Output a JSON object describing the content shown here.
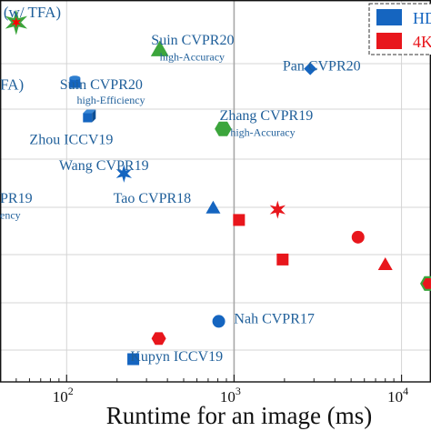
{
  "chart_data": {
    "type": "scatter",
    "xscale": "log",
    "xlim": [
      40,
      15000
    ],
    "xlabel": "Runtime for an image (ms)",
    "xticks": [
      {
        "value": 100,
        "base": "10",
        "exp": "2"
      },
      {
        "value": 1000,
        "base": "10",
        "exp": "3"
      },
      {
        "value": 10000,
        "base": "10",
        "exp": "4"
      }
    ],
    "grid": true,
    "colors": {
      "hd": "#1565c0",
      "uhd": "#e8161c",
      "label": "#1f5f9a",
      "green": "#3ca53c"
    },
    "legend": {
      "placement": "top-right",
      "entries": [
        {
          "label": "HD",
          "color": "#1565c0"
        },
        {
          "label": "4K",
          "color": "#e8161c"
        }
      ]
    },
    "labels": [
      {
        "text": "(w/ TFA)",
        "x": 42,
        "row": 0.035,
        "size": 17
      },
      {
        "text": "Suin CVPR20",
        "x": 320,
        "row": 0.115,
        "size": 16
      },
      {
        "text": "high-Accuracy",
        "x": 360,
        "row": 0.165,
        "size": 12
      },
      {
        "text": "Pan CVPR20",
        "x": 1950,
        "row": 0.19,
        "size": 16
      },
      {
        "text": "FA)",
        "x": 40,
        "row": 0.245,
        "size": 17
      },
      {
        "text": "Suin CVPR20",
        "x": 91,
        "row": 0.245,
        "size": 16
      },
      {
        "text": "high-Efficiency",
        "x": 115,
        "row": 0.29,
        "size": 12
      },
      {
        "text": "Zhang CVPR19",
        "x": 820,
        "row": 0.335,
        "size": 16
      },
      {
        "text": "high-Accuracy",
        "x": 950,
        "row": 0.385,
        "size": 12
      },
      {
        "text": "Zhou ICCV19",
        "x": 60,
        "row": 0.405,
        "size": 16
      },
      {
        "text": "Wang CVPR19",
        "x": 90,
        "row": 0.48,
        "size": 16
      },
      {
        "text": "PR19",
        "x": 40,
        "row": 0.575,
        "size": 16
      },
      {
        "text": "ency",
        "x": 40,
        "row": 0.625,
        "size": 12
      },
      {
        "text": "Tao CVPR18",
        "x": 190,
        "row": 0.575,
        "size": 16
      },
      {
        "text": "Nah CVPR17",
        "x": 1000,
        "row": 0.925,
        "size": 16
      },
      {
        "text": "Kupyn ICCV19",
        "x": 240,
        "row": 1.035,
        "size": 16
      }
    ],
    "points": [
      {
        "x": 50,
        "row": 0.065,
        "marker": "star",
        "color": "red",
        "edge": "#3ca53c"
      },
      {
        "x": 360,
        "row": 0.145,
        "marker": "triangle",
        "color": "green",
        "edge": "#3ca53c"
      },
      {
        "x": 2850,
        "row": 0.2,
        "marker": "diamond",
        "color": "hd"
      },
      {
        "x": 112,
        "row": 0.24,
        "marker": "cylinder",
        "color": "hd"
      },
      {
        "x": 135,
        "row": 0.34,
        "marker": "cube",
        "color": "hd"
      },
      {
        "x": 860,
        "row": 0.375,
        "marker": "hexagon",
        "color": "green",
        "edge": "#3ca53c"
      },
      {
        "x": 220,
        "row": 0.505,
        "marker": "star",
        "color": "hd"
      },
      {
        "x": 750,
        "row": 0.605,
        "marker": "triangle",
        "color": "hd"
      },
      {
        "x": 1070,
        "row": 0.64,
        "marker": "square",
        "color": "uhd"
      },
      {
        "x": 1820,
        "row": 0.61,
        "marker": "star",
        "color": "uhd"
      },
      {
        "x": 5500,
        "row": 0.69,
        "marker": "circle",
        "color": "uhd"
      },
      {
        "x": 8000,
        "row": 0.77,
        "marker": "triangle",
        "color": "uhd"
      },
      {
        "x": 1950,
        "row": 0.755,
        "marker": "square",
        "color": "uhd"
      },
      {
        "x": 14500,
        "row": 0.825,
        "marker": "hexagon",
        "color": "uhd",
        "edge": "#3ca53c"
      },
      {
        "x": 810,
        "row": 0.935,
        "marker": "circle",
        "color": "hd"
      },
      {
        "x": 355,
        "row": 0.985,
        "marker": "hexagon",
        "color": "uhd"
      },
      {
        "x": 250,
        "row": 1.045,
        "marker": "square",
        "color": "hd"
      }
    ]
  }
}
